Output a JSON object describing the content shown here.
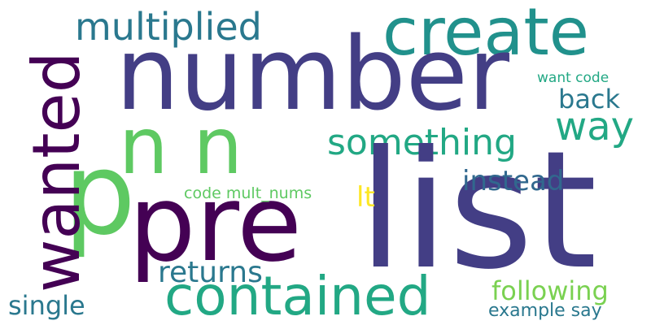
{
  "words": {
    "number": "number",
    "list": "list",
    "pre": "pre",
    "p": "p",
    "nn": "n n",
    "wanted": "wanted",
    "create": "create",
    "contained": "contained",
    "multiplied": "multiplied",
    "way": "way",
    "something": "something",
    "back": "back",
    "instead": "instead",
    "returns": "returns",
    "following": "following",
    "single": "single",
    "example_say": "example say",
    "lt": "lt",
    "code_mult_nums": "code mult_nums",
    "want_code": "want code"
  },
  "colors": {
    "dark_purple": "#440154",
    "indigo": "#433e85",
    "steel_blue": "#31688e",
    "teal_blue": "#2a788e",
    "teal": "#21918c",
    "green_teal": "#22a884",
    "green": "#5ec962",
    "light_green": "#7ad151",
    "yellow": "#fde725"
  }
}
